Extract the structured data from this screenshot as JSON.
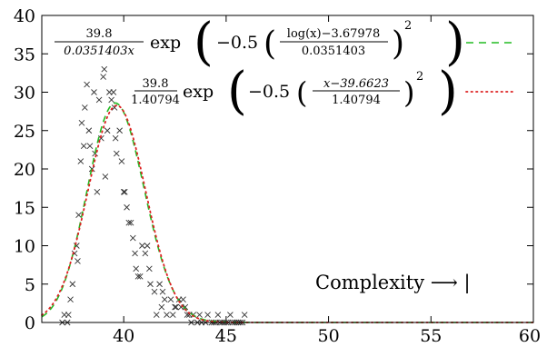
{
  "chart_data": {
    "type": "scatter",
    "title": "",
    "xlabel": "",
    "ylabel": "",
    "xlim": [
      36,
      60
    ],
    "ylim": [
      0,
      40
    ],
    "x_ticks": [
      40,
      45,
      50,
      55,
      60
    ],
    "y_ticks": [
      0,
      5,
      10,
      15,
      20,
      25,
      30,
      35,
      40
    ],
    "grid": false,
    "legend_position": "top-right",
    "annotation": "Complexity ⟶ |",
    "series": [
      {
        "type": "scatter",
        "marker": "x",
        "color": "#333333",
        "points": [
          [
            37.0,
            0
          ],
          [
            37.1,
            1
          ],
          [
            37.25,
            0
          ],
          [
            37.3,
            1
          ],
          [
            37.4,
            3
          ],
          [
            37.5,
            5
          ],
          [
            37.6,
            9
          ],
          [
            37.7,
            10
          ],
          [
            37.75,
            8
          ],
          [
            37.8,
            14
          ],
          [
            37.9,
            21
          ],
          [
            37.95,
            26
          ],
          [
            38.05,
            23
          ],
          [
            38.1,
            28
          ],
          [
            38.2,
            31
          ],
          [
            38.3,
            25
          ],
          [
            38.35,
            23
          ],
          [
            38.45,
            20
          ],
          [
            38.55,
            30
          ],
          [
            38.6,
            22
          ],
          [
            38.7,
            17
          ],
          [
            38.8,
            29
          ],
          [
            38.9,
            24
          ],
          [
            39.0,
            32
          ],
          [
            39.05,
            33
          ],
          [
            39.1,
            19
          ],
          [
            39.2,
            25
          ],
          [
            39.3,
            30
          ],
          [
            39.4,
            29
          ],
          [
            39.5,
            30
          ],
          [
            39.55,
            28
          ],
          [
            39.6,
            24
          ],
          [
            39.65,
            22
          ],
          [
            39.8,
            25
          ],
          [
            39.9,
            21
          ],
          [
            40.0,
            17
          ],
          [
            40.05,
            17
          ],
          [
            40.15,
            15
          ],
          [
            40.25,
            13
          ],
          [
            40.35,
            13
          ],
          [
            40.45,
            11
          ],
          [
            40.55,
            9
          ],
          [
            40.6,
            7
          ],
          [
            40.7,
            6
          ],
          [
            40.8,
            6
          ],
          [
            40.9,
            10
          ],
          [
            41.05,
            9
          ],
          [
            41.15,
            10
          ],
          [
            41.25,
            7
          ],
          [
            41.3,
            5
          ],
          [
            41.5,
            4
          ],
          [
            41.6,
            1
          ],
          [
            41.75,
            5
          ],
          [
            41.85,
            2
          ],
          [
            41.9,
            4
          ],
          [
            42.0,
            3
          ],
          [
            42.1,
            1
          ],
          [
            42.3,
            3
          ],
          [
            42.4,
            1
          ],
          [
            42.5,
            2
          ],
          [
            42.55,
            2
          ],
          [
            42.7,
            3
          ],
          [
            42.8,
            2
          ],
          [
            42.9,
            3
          ],
          [
            43.0,
            2
          ],
          [
            43.1,
            1
          ],
          [
            43.2,
            1
          ],
          [
            43.3,
            0
          ],
          [
            43.4,
            1
          ],
          [
            43.6,
            0
          ],
          [
            43.7,
            1
          ],
          [
            43.8,
            0
          ],
          [
            44.0,
            0
          ],
          [
            44.1,
            1
          ],
          [
            44.3,
            0
          ],
          [
            44.4,
            0
          ],
          [
            44.5,
            0
          ],
          [
            44.6,
            1
          ],
          [
            44.7,
            0
          ],
          [
            44.8,
            0
          ],
          [
            44.9,
            0
          ],
          [
            45.0,
            0
          ],
          [
            45.1,
            0
          ],
          [
            45.2,
            1
          ],
          [
            45.3,
            0
          ],
          [
            45.4,
            0
          ],
          [
            45.5,
            0
          ],
          [
            45.6,
            0
          ],
          [
            45.7,
            0
          ],
          [
            45.8,
            0
          ],
          [
            45.9,
            1
          ]
        ]
      },
      {
        "type": "line",
        "style": "dashed",
        "color": "#22bb22",
        "formula": "lognormal",
        "amplitude": 39.8,
        "mu": 3.67978,
        "sigma": 0.0351403,
        "legend": {
          "numerator": "39.8",
          "denominator": "0.0351403x",
          "exp": "exp",
          "coef": "−0.5",
          "inner_num": "log(x)−3.67978",
          "inner_den": "0.0351403",
          "power": "2"
        }
      },
      {
        "type": "line",
        "style": "dotted",
        "color": "#dd2222",
        "formula": "normal",
        "amplitude": 39.8,
        "mu": 39.6623,
        "sigma": 1.40794,
        "legend": {
          "numerator": "39.8",
          "denominator": "1.40794",
          "exp": "exp",
          "coef": "−0.5",
          "inner_num": "x−39.6623",
          "inner_den": "1.40794",
          "power": "2"
        }
      }
    ]
  }
}
